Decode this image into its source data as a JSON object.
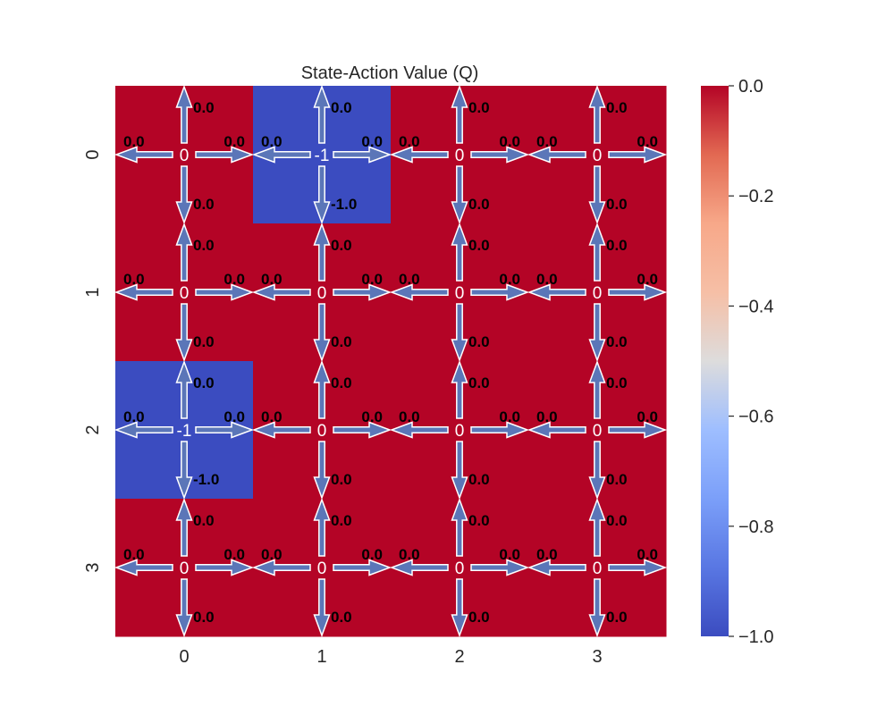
{
  "chart_data": {
    "type": "heatmap",
    "title": "State-Action Value (Q)",
    "rows": [
      "0",
      "1",
      "2",
      "3"
    ],
    "cols": [
      "0",
      "1",
      "2",
      "3"
    ],
    "values": [
      [
        0,
        -1,
        0,
        0
      ],
      [
        0,
        0,
        0,
        0
      ],
      [
        -1,
        0,
        0,
        0
      ],
      [
        0,
        0,
        0,
        0
      ]
    ],
    "value_labels": [
      [
        "0",
        "-1",
        "0",
        "0"
      ],
      [
        "0",
        "0",
        "0",
        "0"
      ],
      [
        "-1",
        "0",
        "0",
        "0"
      ],
      [
        "0",
        "0",
        "0",
        "0"
      ]
    ],
    "actions": [
      "up",
      "down",
      "left",
      "right"
    ],
    "q_values": [
      [
        {
          "up": "0.0",
          "down": "0.0",
          "left": "0.0",
          "right": "0.0"
        },
        {
          "up": "0.0",
          "down": "-1.0",
          "left": "0.0",
          "right": "0.0"
        },
        {
          "up": "0.0",
          "down": "0.0",
          "left": "0.0",
          "right": "0.0"
        },
        {
          "up": "0.0",
          "down": "0.0",
          "left": "0.0",
          "right": "0.0"
        }
      ],
      [
        {
          "up": "0.0",
          "down": "0.0",
          "left": "0.0",
          "right": "0.0"
        },
        {
          "up": "0.0",
          "down": "0.0",
          "left": "0.0",
          "right": "0.0"
        },
        {
          "up": "0.0",
          "down": "0.0",
          "left": "0.0",
          "right": "0.0"
        },
        {
          "up": "0.0",
          "down": "0.0",
          "left": "0.0",
          "right": "0.0"
        }
      ],
      [
        {
          "up": "0.0",
          "down": "-1.0",
          "left": "0.0",
          "right": "0.0"
        },
        {
          "up": "0.0",
          "down": "0.0",
          "left": "0.0",
          "right": "0.0"
        },
        {
          "up": "0.0",
          "down": "0.0",
          "left": "0.0",
          "right": "0.0"
        },
        {
          "up": "0.0",
          "down": "0.0",
          "left": "0.0",
          "right": "0.0"
        }
      ],
      [
        {
          "up": "0.0",
          "down": "0.0",
          "left": "0.0",
          "right": "0.0"
        },
        {
          "up": "0.0",
          "down": "0.0",
          "left": "0.0",
          "right": "0.0"
        },
        {
          "up": "0.0",
          "down": "0.0",
          "left": "0.0",
          "right": "0.0"
        },
        {
          "up": "0.0",
          "down": "0.0",
          "left": "0.0",
          "right": "0.0"
        }
      ]
    ],
    "colormap": "coolwarm",
    "colorbar": {
      "range": [
        -1.0,
        0.0
      ],
      "ticks": [
        0.0,
        -0.2,
        -0.4,
        -0.6,
        -0.8,
        -1.0
      ],
      "tick_labels": [
        "0.0",
        "−0.2",
        "−0.4",
        "−0.6",
        "−0.8",
        "−1.0"
      ],
      "placement": "right"
    },
    "colors": {
      "max": "#b40426",
      "min": "#3b4cc0",
      "arrow_fill": "#5b76b8",
      "arrow_stroke": "#ffffff",
      "cell_text": "#ffffff",
      "label_text": "#000000"
    },
    "grid": false
  }
}
